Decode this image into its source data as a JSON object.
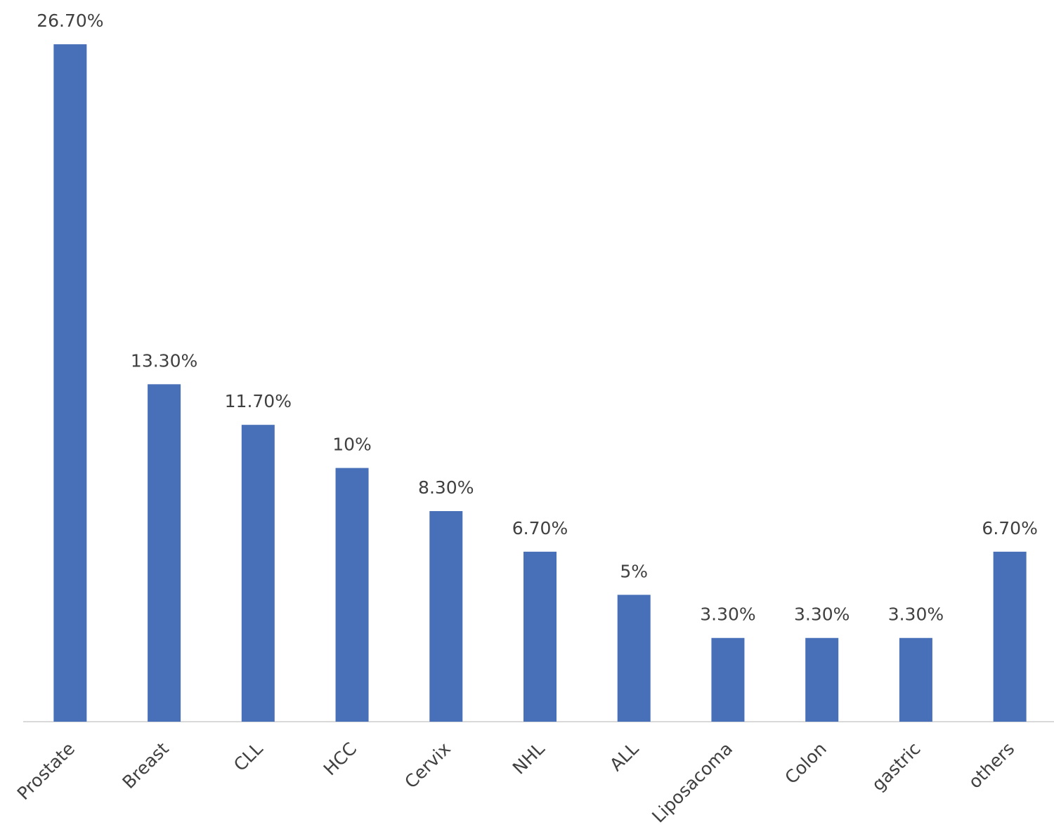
{
  "chart_data": {
    "type": "bar",
    "categories": [
      "Prostate",
      "Breast",
      "CLL",
      "HCC",
      "Cervix",
      "NHL",
      "ALL",
      "Liposacoma",
      "Colon",
      "gastric",
      "others"
    ],
    "values": [
      26.7,
      13.3,
      11.7,
      10,
      8.3,
      6.7,
      5,
      3.3,
      3.3,
      3.3,
      6.7
    ],
    "value_labels": [
      "26.70%",
      "13.30%",
      "11.70%",
      "10%",
      "8.30%",
      "6.70%",
      "5%",
      "3.30%",
      "3.30%",
      "3.30%",
      "6.70%"
    ],
    "color": "#4870b8"
  }
}
